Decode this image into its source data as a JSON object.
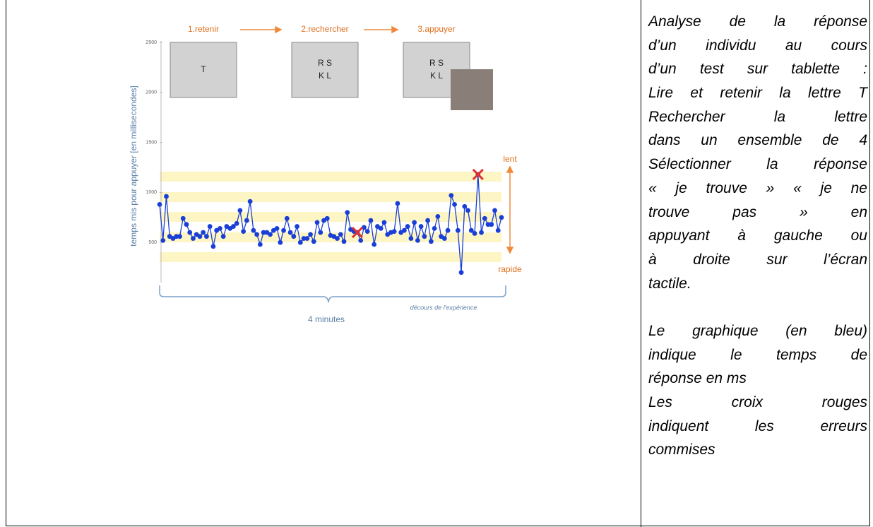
{
  "chart_data": {
    "type": "line",
    "steps": [
      "1.retenir",
      "2.rechercher",
      "3.appuyer"
    ],
    "screens": [
      [
        "T"
      ],
      [
        "R S",
        "K L"
      ],
      [
        "R S",
        "K L"
      ]
    ],
    "ylabel": "temps mis pour appuyer [en millisecondes]",
    "ylim": [
      0,
      2500
    ],
    "yticks": [
      500,
      1000,
      1500,
      2000,
      2500
    ],
    "annotations": {
      "slow": "lent",
      "fast": "rapide",
      "course": "décours de l'expérience",
      "duration": "4 minutes"
    },
    "color": "#1a3fd6",
    "error_color": "#e03030",
    "values": [
      880,
      520,
      960,
      560,
      540,
      560,
      560,
      740,
      680,
      600,
      540,
      580,
      560,
      600,
      560,
      660,
      460,
      620,
      640,
      560,
      660,
      640,
      660,
      690,
      820,
      610,
      720,
      910,
      620,
      580,
      480,
      600,
      600,
      580,
      620,
      640,
      500,
      620,
      740,
      600,
      560,
      660,
      500,
      540,
      540,
      580,
      510,
      700,
      600,
      720,
      740,
      570,
      560,
      540,
      580,
      510,
      800,
      630,
      610,
      600,
      520,
      650,
      610,
      720,
      480,
      660,
      640,
      700,
      580,
      600,
      610,
      890,
      600,
      620,
      660,
      540,
      700,
      520,
      660,
      560,
      720,
      510,
      640,
      760,
      560,
      540,
      620,
      970,
      880,
      620,
      200,
      860,
      820,
      620,
      590,
      1180,
      600,
      740,
      680,
      680,
      820,
      620,
      750
    ],
    "errors": [
      {
        "index": 59,
        "value": 600
      },
      {
        "index": 95,
        "value": 1180
      }
    ]
  },
  "description": {
    "paragraphs": [
      [
        "Analyse de la réponse",
        "d’un individu au cours",
        "d’un test sur tablette :",
        "Lire et retenir la lettre T",
        "Rechercher la lettre",
        "dans un ensemble de 4",
        "Sélectionner la réponse",
        "« je trouve » « je ne",
        "trouve pas » en",
        "appuyant à gauche ou",
        "à droite sur l’écran",
        "tactile."
      ],
      [
        "Le graphique (en bleu)",
        "indique le temps de",
        "réponse en ms",
        "Les croix rouges",
        "indiquent les erreurs",
        "commises"
      ]
    ]
  }
}
